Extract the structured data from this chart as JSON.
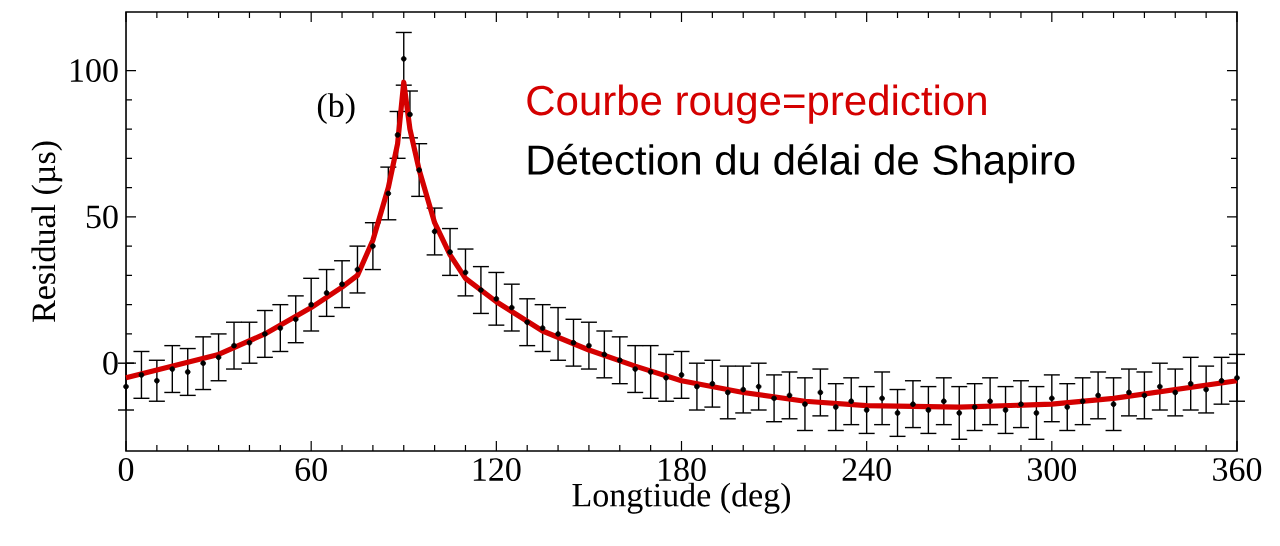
{
  "chart_data": {
    "type": "scatter",
    "xlabel": "Longtiude (deg)",
    "ylabel": "Residual (µs)",
    "annotations": [
      "(b)",
      "Détection du délai de Shapiro"
    ],
    "xlim": [
      0,
      360
    ],
    "ylim": [
      -30,
      120
    ],
    "xticks": [
      0,
      60,
      120,
      180,
      240,
      300,
      360
    ],
    "yticks": [
      0,
      50,
      100
    ],
    "series": [
      {
        "color": "#000000",
        "x": [
          0,
          5,
          10,
          15,
          20,
          25,
          30,
          35,
          40,
          45,
          50,
          55,
          60,
          65,
          70,
          75,
          80,
          85,
          88,
          90,
          92,
          95,
          100,
          105,
          110,
          115,
          120,
          125,
          130,
          135,
          140,
          145,
          150,
          155,
          160,
          165,
          170,
          175,
          180,
          185,
          190,
          195,
          200,
          205,
          210,
          215,
          220,
          225,
          230,
          235,
          240,
          245,
          250,
          255,
          260,
          265,
          270,
          275,
          280,
          285,
          290,
          295,
          300,
          305,
          310,
          315,
          320,
          325,
          330,
          335,
          340,
          345,
          350,
          355,
          360
        ],
        "values": [
          -8,
          -4,
          -6,
          -2,
          -3,
          0,
          2,
          6,
          7,
          10,
          12,
          15,
          20,
          24,
          27,
          32,
          40,
          58,
          78,
          104,
          85,
          66,
          45,
          38,
          31,
          25,
          22,
          19,
          14,
          12,
          10,
          7,
          6,
          3,
          1,
          -2,
          -3,
          -5,
          -4,
          -8,
          -7,
          -10,
          -9,
          -8,
          -12,
          -11,
          -14,
          -10,
          -15,
          -13,
          -16,
          -12,
          -17,
          -14,
          -16,
          -13,
          -17,
          -15,
          -13,
          -16,
          -14,
          -17,
          -12,
          -15,
          -13,
          -11,
          -14,
          -10,
          -11,
          -8,
          -10,
          -7,
          -9,
          -6,
          -5
        ],
        "errors": [
          8,
          8,
          7,
          8,
          8,
          9,
          8,
          8,
          7,
          8,
          8,
          8,
          9,
          8,
          8,
          8,
          8,
          9,
          8,
          9,
          8,
          9,
          8,
          8,
          8,
          8,
          9,
          8,
          8,
          8,
          9,
          8,
          8,
          8,
          8,
          8,
          9,
          8,
          8,
          8,
          8,
          9,
          8,
          8,
          8,
          8,
          9,
          8,
          8,
          8,
          8,
          9,
          8,
          8,
          8,
          8,
          9,
          8,
          8,
          8,
          8,
          9,
          8,
          8,
          8,
          8,
          9,
          8,
          8,
          8,
          8,
          9,
          8,
          8,
          8
        ]
      },
      {
        "type": "line",
        "name": "Courbe rouge=prediction",
        "color": "#d40000",
        "x": [
          0,
          15,
          30,
          45,
          60,
          70,
          75,
          80,
          85,
          88,
          90,
          92,
          95,
          100,
          105,
          110,
          120,
          135,
          150,
          165,
          180,
          200,
          220,
          240,
          270,
          300,
          320,
          340,
          360
        ],
        "values": [
          -5,
          -1,
          3,
          10,
          19,
          26,
          30,
          42,
          60,
          75,
          96,
          80,
          66,
          48,
          37,
          29,
          21,
          11,
          4.5,
          -1,
          -6,
          -10,
          -13,
          -14.5,
          -15,
          -14,
          -12,
          -9,
          -6
        ]
      }
    ]
  }
}
